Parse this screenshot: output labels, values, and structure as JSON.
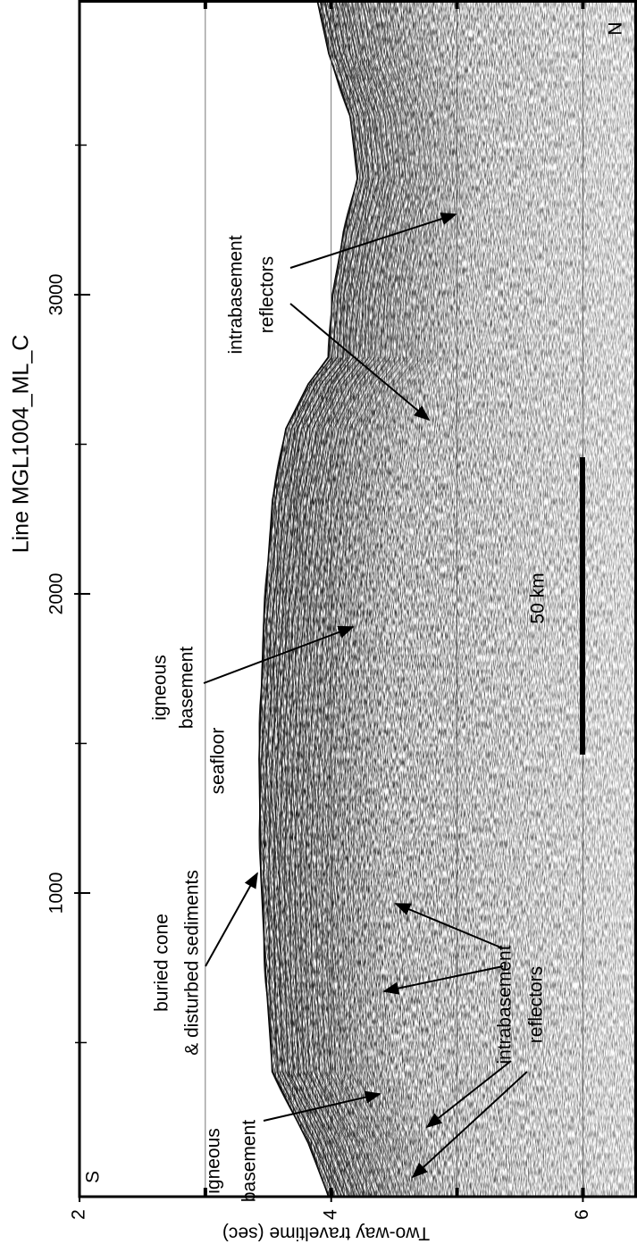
{
  "chart_data": {
    "type": "seismic-section",
    "title": "Line MGL1004_ML_C",
    "y_label": "Two-way traveltime (sec)",
    "xlim": [
      -15,
      3985
    ],
    "xticks": [
      1000,
      2000,
      3000
    ],
    "xminorticks": [
      500,
      1500,
      2500,
      3500
    ],
    "ylim": [
      2,
      6.43
    ],
    "yticks": [
      2,
      4,
      6
    ],
    "ygrid": [
      3,
      4,
      5,
      6
    ],
    "direction_labels": [
      "S",
      "N"
    ],
    "scale_bar": "50 km",
    "annotations": [
      {
        "lines": [
          "intrabasement",
          "reflectors"
        ]
      },
      {
        "lines": [
          "igneous",
          "basement"
        ]
      },
      {
        "lines": [
          "seafloor"
        ]
      },
      {
        "lines": [
          "buried cone",
          "& disturbed sediments"
        ]
      },
      {
        "lines": [
          "intrabasement",
          "reflectors"
        ]
      },
      {
        "lines": [
          "igneous",
          "basement"
        ]
      }
    ]
  }
}
